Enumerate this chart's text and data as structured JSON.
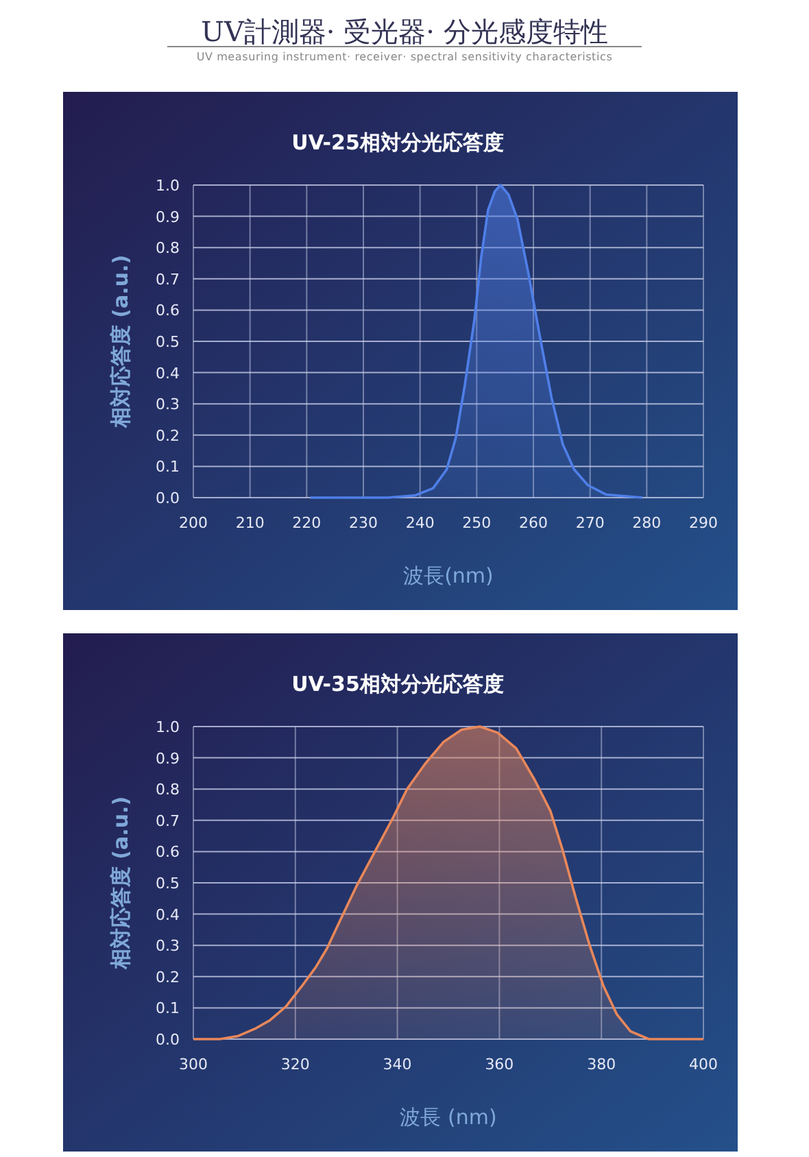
{
  "chart_data": [
    {
      "type": "area",
      "title": "UV-25相対分光応答度",
      "xlabel": "波長(nm)",
      "ylabel": "相対応答度 (a.u.)",
      "annotations": [
        "UV計測器· 受光器· 分光感度特性",
        "UV measuring instrument· receiver· spectral sensitivity characteristics"
      ],
      "series": [
        {
          "color": "#4f7fe8",
          "x": [
            220.7,
            234.3,
            239.1,
            242.3,
            244.7,
            246.3,
            247.9,
            249.6,
            250.8,
            252,
            253.2,
            254.2,
            255.6,
            257.2,
            259.2,
            261.2,
            263.2,
            265.2,
            267.2,
            269.6,
            272.8,
            279.2
          ],
          "values": [
            0,
            0,
            0.007,
            0.03,
            0.09,
            0.19,
            0.36,
            0.57,
            0.77,
            0.92,
            0.98,
            1.0,
            0.97,
            0.89,
            0.71,
            0.51,
            0.32,
            0.17,
            0.09,
            0.04,
            0.01,
            0
          ]
        }
      ],
      "xlim": [
        200,
        290
      ],
      "xticks": [
        200,
        210,
        220,
        230,
        240,
        250,
        260,
        270,
        280,
        290
      ],
      "ylim": [
        0,
        1
      ],
      "yticks": [
        {
          "value": 0,
          "label": "0.0"
        },
        {
          "value": 0.1,
          "label": "0.1"
        },
        {
          "value": 0.2,
          "label": "0.2"
        },
        {
          "value": 0.3,
          "label": "0.3"
        },
        {
          "value": 0.4,
          "label": "0.4"
        },
        {
          "value": 0.5,
          "label": "0.5"
        },
        {
          "value": 0.6,
          "label": "0.6"
        },
        {
          "value": 0.7,
          "label": "0.7"
        },
        {
          "value": 0.8,
          "label": "0.8"
        },
        {
          "value": 0.9,
          "label": "0.9"
        },
        {
          "value": 1,
          "label": "1.0"
        }
      ],
      "grid": true
    },
    {
      "type": "area",
      "title": "UV-35相対分光応答度",
      "xlabel": "波長 (nm)",
      "ylabel": "相対応答度 (a.u.)",
      "series": [
        {
          "color": "#e8875a",
          "x": [
            300,
            305.2,
            308.8,
            312.3,
            315,
            318.2,
            321.3,
            324,
            326.2,
            328.5,
            332,
            335.6,
            339.2,
            341.9,
            345.4,
            349,
            352.6,
            356.2,
            359.7,
            363.3,
            366.9,
            370,
            372.3,
            375,
            377.7,
            380.4,
            383,
            385.7,
            389.3,
            400
          ],
          "values": [
            0,
            0,
            0.01,
            0.035,
            0.06,
            0.105,
            0.17,
            0.23,
            0.29,
            0.37,
            0.49,
            0.6,
            0.71,
            0.8,
            0.88,
            0.95,
            0.99,
            1.0,
            0.98,
            0.93,
            0.83,
            0.73,
            0.61,
            0.45,
            0.3,
            0.17,
            0.08,
            0.025,
            0,
            0
          ]
        }
      ],
      "xlim": [
        300,
        400
      ],
      "xticks": [
        300,
        320,
        340,
        360,
        380,
        400
      ],
      "ylim": [
        0,
        1
      ],
      "yticks": [
        {
          "value": 0,
          "label": "0.0"
        },
        {
          "value": 0.1,
          "label": "0.1"
        },
        {
          "value": 0.2,
          "label": "0.2"
        },
        {
          "value": 0.3,
          "label": "0.3"
        },
        {
          "value": 0.4,
          "label": "0.4"
        },
        {
          "value": 0.5,
          "label": "0.5"
        },
        {
          "value": 0.6,
          "label": "0.6"
        },
        {
          "value": 0.7,
          "label": "0.7"
        },
        {
          "value": 0.8,
          "label": "0.8"
        },
        {
          "value": 0.9,
          "label": "0.9"
        },
        {
          "value": 1,
          "label": "1.0"
        }
      ],
      "grid": true
    }
  ]
}
